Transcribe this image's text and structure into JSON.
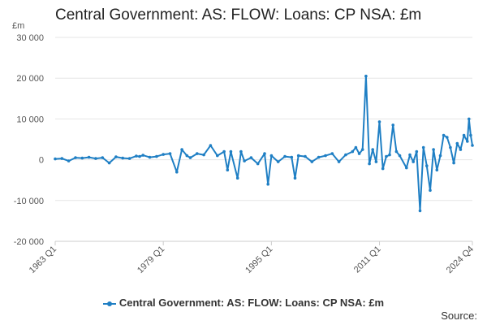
{
  "title": "Central Government: AS: FLOW: Loans: CP NSA: £m",
  "source_label": "Source:",
  "colors": {
    "series": "#1f7fc4",
    "grid": "#e6e6e6",
    "axis": "#cccccc"
  },
  "chart_data": {
    "type": "line",
    "title": "Central Government: AS: FLOW: Loans: CP NSA: £m",
    "ylabel": "£m",
    "ylim": [
      -20000,
      30000
    ],
    "yticks": [
      -20000,
      -10000,
      0,
      10000,
      20000,
      30000
    ],
    "ytick_labels": [
      "-20 000",
      "-10 000",
      "0",
      "10 000",
      "20 000",
      "30 000"
    ],
    "xlim": [
      "1963 Q1",
      "2024 Q4"
    ],
    "xticks": [
      "1963 Q1",
      "1979 Q1",
      "1995 Q1",
      "2011 Q1",
      "2024 Q4"
    ],
    "grid": true,
    "legend": "bottom",
    "series": [
      {
        "name": "Central Government: AS: FLOW: Loans: CP NSA: £m",
        "x": [
          "1963 Q1",
          "1964 Q1",
          "1965 Q1",
          "1966 Q1",
          "1967 Q1",
          "1968 Q1",
          "1969 Q1",
          "1970 Q1",
          "1971 Q1",
          "1972 Q1",
          "1973 Q1",
          "1974 Q1",
          "1975 Q1",
          "1975 Q3",
          "1976 Q1",
          "1977 Q1",
          "1978 Q1",
          "1979 Q1",
          "1980 Q1",
          "1981 Q1",
          "1981 Q4",
          "1982 Q3",
          "1983 Q1",
          "1984 Q1",
          "1985 Q1",
          "1986 Q1",
          "1987 Q1",
          "1988 Q1",
          "1988 Q3",
          "1989 Q1",
          "1990 Q1",
          "1990 Q3",
          "1991 Q1",
          "1992 Q1",
          "1993 Q1",
          "1994 Q1",
          "1994 Q3",
          "1995 Q1",
          "1996 Q1",
          "1997 Q1",
          "1998 Q1",
          "1998 Q3",
          "1999 Q1",
          "2000 Q1",
          "2001 Q1",
          "2002 Q1",
          "2003 Q1",
          "2004 Q1",
          "2005 Q1",
          "2006 Q1",
          "2007 Q1",
          "2007 Q3",
          "2008 Q1",
          "2008 Q3",
          "2009 Q1",
          "2009 Q3",
          "2010 Q1",
          "2010 Q3",
          "2011 Q1",
          "2011 Q3",
          "2012 Q1",
          "2012 Q3",
          "2013 Q1",
          "2013 Q3",
          "2014 Q1",
          "2015 Q1",
          "2015 Q3",
          "2016 Q1",
          "2016 Q3",
          "2017 Q1",
          "2017 Q3",
          "2018 Q1",
          "2018 Q3",
          "2019 Q1",
          "2019 Q3",
          "2020 Q1",
          "2020 Q3",
          "2021 Q1",
          "2021 Q3",
          "2022 Q1",
          "2022 Q3",
          "2023 Q1",
          "2023 Q3",
          "2024 Q1",
          "2024 Q2",
          "2024 Q3",
          "2024 Q4"
        ],
        "values": [
          200,
          300,
          -300,
          500,
          400,
          600,
          300,
          500,
          -800,
          700,
          400,
          300,
          900,
          800,
          1100,
          600,
          800,
          1300,
          1500,
          -3000,
          2500,
          1000,
          500,
          1500,
          1200,
          3500,
          1000,
          2000,
          -2500,
          2000,
          -4500,
          2000,
          -300,
          500,
          -1000,
          1500,
          -6000,
          1000,
          -500,
          800,
          600,
          -4500,
          1000,
          800,
          -500,
          600,
          1000,
          1500,
          -500,
          1200,
          2000,
          3000,
          1500,
          2500,
          20500,
          -1000,
          2500,
          -500,
          9300,
          -2200,
          800,
          1200,
          8500,
          2000,
          1000,
          -2000,
          1200,
          -500,
          2000,
          -12500,
          3000,
          -1500,
          -7500,
          2500,
          -2500,
          1000,
          6000,
          5500,
          3000,
          -800,
          4000,
          2500,
          6000,
          4500,
          10000,
          6000,
          3500
        ]
      }
    ]
  }
}
